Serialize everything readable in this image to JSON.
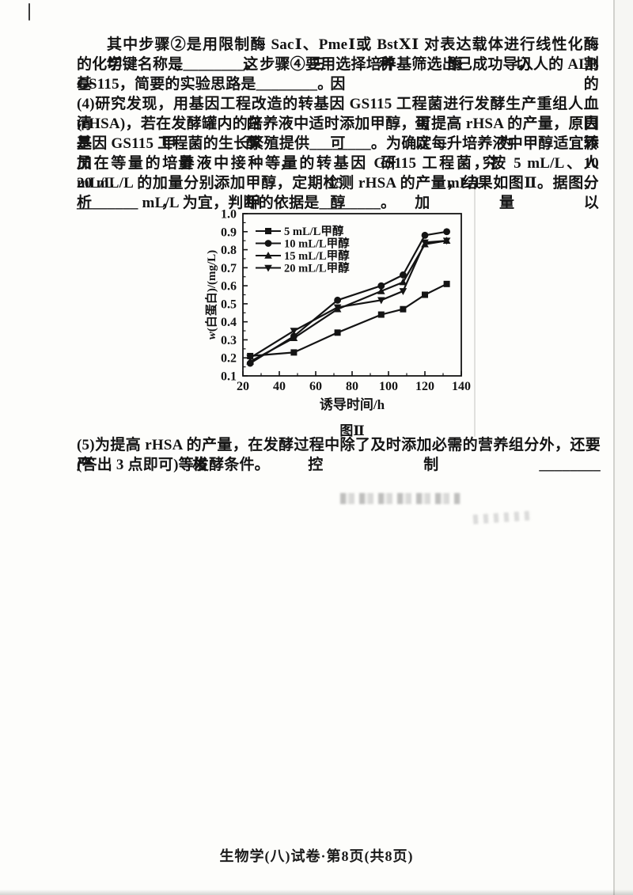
{
  "document": {
    "lines": [
      "其中步骤②是用限制酶 SacⅠ、PmeⅠ或 BstⅩⅠ 对表达载体进行线性化酶切，这三种酶切割",
      "的化学键名称是________。步骤④要用选择培养基筛选出已成功导入人的 ALB 基因的",
      "GS115，简要的实验思路是________。",
      "(4)研究发现，用基因工程改造的转基因 GS115 工程菌进行发酵生产重组人血清白蛋白",
      "(rHSA)，若在发酵罐内的培养液中适时添加甲醇，可提高 rHSA 的产量，原因是甲醇可以为转",
      "基因 GS115 工程菌的生长繁殖提供________。为确定每升培养液中甲醇适宜添加量，研究人",
      "员在等量的培养液中接种等量的转基因 GS115 工程菌，按 5 mL/L、10 mL/L、15 mL/L、",
      "20 mL/L 的加量分别添加甲醇，定期检测 rHSA 的产量，结果如图Ⅱ。据图分析，甲醇加量以",
      "________ mL/L 为宜，判断的依据是________。"
    ],
    "paragraph5_lines": [
      "(5)为提高 rHSA 的产量，在发酵过程中除了及时添加必需的营养组分外，还要严格控制________",
      "(答出 3 点即可)等发酵条件。"
    ]
  },
  "figure": {
    "caption": "图Ⅱ"
  },
  "chart_data": {
    "type": "line",
    "title": "图Ⅱ",
    "xlabel": "诱导时间/h",
    "ylabel": "w(白蛋白)/(mg/L)",
    "xlim": [
      20,
      140
    ],
    "ylim": [
      0.1,
      1.0
    ],
    "x_ticks": [
      20,
      40,
      60,
      80,
      100,
      120,
      140
    ],
    "y_ticks": [
      0.1,
      0.2,
      0.3,
      0.4,
      0.5,
      0.6,
      0.7,
      0.8,
      0.9,
      1.0
    ],
    "grid": false,
    "legend_position": "top-left",
    "x": [
      24,
      48,
      72,
      96,
      108,
      120,
      132
    ],
    "series": [
      {
        "name": "5 mL/L甲醇",
        "marker": "square",
        "values": [
          0.21,
          0.23,
          0.34,
          0.44,
          0.47,
          0.55,
          0.61
        ]
      },
      {
        "name": "10 mL/L甲醇",
        "marker": "circle",
        "values": [
          0.17,
          0.32,
          0.52,
          0.6,
          0.66,
          0.88,
          0.9
        ]
      },
      {
        "name": "15 mL/L甲醇",
        "marker": "triangle-up",
        "values": [
          0.18,
          0.31,
          0.47,
          0.57,
          0.62,
          0.83,
          0.85
        ]
      },
      {
        "name": "20 mL/L甲醇",
        "marker": "triangle-down",
        "values": [
          0.2,
          0.35,
          0.48,
          0.52,
          0.57,
          0.84,
          0.85
        ]
      }
    ]
  },
  "footer": {
    "text": "生物学(八)试卷·第8页(共8页)"
  },
  "colors": {
    "ink": "#141414",
    "paper": "#fdfdfb"
  }
}
